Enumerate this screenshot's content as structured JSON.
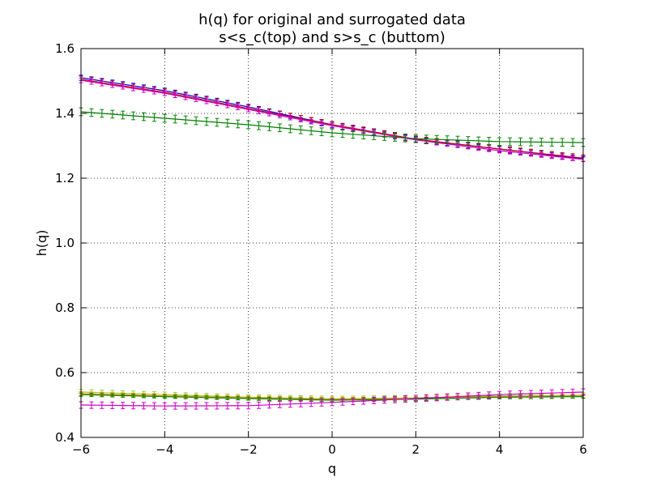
{
  "chart_data": {
    "type": "line",
    "title": "h(q) for original and surrogated data",
    "subtitle": "s<s_c(top) and s>s_c (buttom)",
    "xlabel": "q",
    "ylabel": "h(q)",
    "xlim": [
      -6,
      6
    ],
    "ylim": [
      0.4,
      1.6
    ],
    "xticks": [
      -6,
      -4,
      -2,
      0,
      2,
      4,
      6
    ],
    "xtick_labels": [
      "−6",
      "−4",
      "−2",
      "0",
      "2",
      "4",
      "6"
    ],
    "yticks": [
      0.4,
      0.6,
      0.8,
      1.0,
      1.2,
      1.4,
      1.6
    ],
    "ytick_labels": [
      "0.4",
      "0.6",
      "0.8",
      "1.0",
      "1.2",
      "1.4",
      "1.6"
    ],
    "grid": true,
    "error_bars": true,
    "q_step": 0.25,
    "series": [
      {
        "color": "#0000ff",
        "err": 0.008,
        "q": [
          -6,
          -4,
          -2,
          0,
          2,
          4,
          6
        ],
        "h": [
          1.51,
          1.47,
          1.42,
          1.365,
          1.32,
          1.29,
          1.26
        ]
      },
      {
        "color": "#cc0000",
        "err": 0.01,
        "q": [
          -6,
          -4,
          -2,
          0,
          2,
          4,
          6
        ],
        "h": [
          1.505,
          1.465,
          1.415,
          1.365,
          1.32,
          1.29,
          1.262
        ]
      },
      {
        "color": "#cc00cc",
        "err": 0.007,
        "q": [
          -6,
          -4,
          -2,
          0,
          2,
          4,
          6
        ],
        "h": [
          1.502,
          1.462,
          1.412,
          1.362,
          1.318,
          1.285,
          1.258
        ]
      },
      {
        "color": "#008000",
        "err": 0.012,
        "q": [
          -6,
          -4,
          -2,
          0,
          2,
          4,
          6
        ],
        "h": [
          1.405,
          1.385,
          1.365,
          1.34,
          1.322,
          1.313,
          1.31
        ]
      },
      {
        "color": "#9acd32",
        "err": 0.008,
        "q": [
          -6,
          -4,
          -2,
          0,
          2,
          4,
          6
        ],
        "h": [
          0.54,
          0.532,
          0.524,
          0.519,
          0.522,
          0.528,
          0.53
        ]
      },
      {
        "color": "#ff8c00",
        "err": 0.006,
        "q": [
          -6,
          -4,
          -2,
          0,
          2,
          4,
          6
        ],
        "h": [
          0.535,
          0.528,
          0.522,
          0.517,
          0.52,
          0.526,
          0.528
        ]
      },
      {
        "color": "#008000",
        "err": 0.005,
        "q": [
          -6,
          -4,
          -2,
          0,
          2,
          4,
          6
        ],
        "h": [
          0.532,
          0.526,
          0.52,
          0.515,
          0.518,
          0.524,
          0.526
        ]
      },
      {
        "color": "#cc00cc",
        "err": 0.01,
        "q": [
          -6,
          -4,
          -2,
          0,
          2,
          4,
          6
        ],
        "h": [
          0.5,
          0.497,
          0.498,
          0.508,
          0.52,
          0.532,
          0.54
        ]
      }
    ]
  }
}
